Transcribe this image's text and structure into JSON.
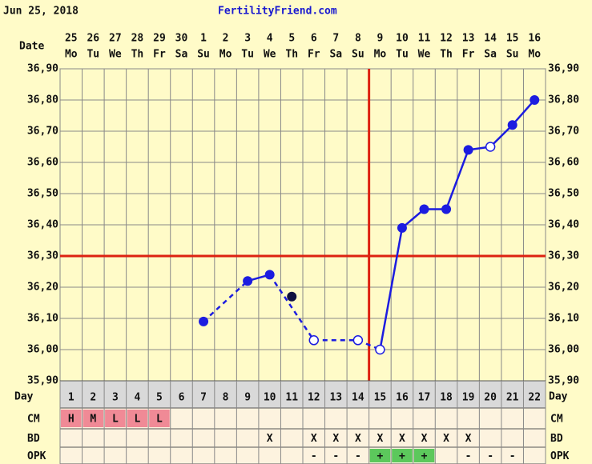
{
  "chart_data": {
    "type": "line",
    "title": "Jun 25, 2018",
    "site": "FertilityFriend.com",
    "date_label": "Date",
    "day_label": "Day",
    "dates": [
      "25",
      "26",
      "27",
      "28",
      "29",
      "30",
      "1",
      "2",
      "3",
      "4",
      "5",
      "6",
      "7",
      "8",
      "9",
      "10",
      "11",
      "12",
      "13",
      "14",
      "15",
      "16"
    ],
    "weekdays": [
      "Mo",
      "Tu",
      "We",
      "Th",
      "Fr",
      "Sa",
      "Su",
      "Mo",
      "Tu",
      "We",
      "Th",
      "Fr",
      "Sa",
      "Su",
      "Mo",
      "Tu",
      "We",
      "Th",
      "Fr",
      "Sa",
      "Su",
      "Mo"
    ],
    "days": [
      1,
      2,
      3,
      4,
      5,
      6,
      7,
      8,
      9,
      10,
      11,
      12,
      13,
      14,
      15,
      16,
      17,
      18,
      19,
      20,
      21,
      22
    ],
    "values": [
      null,
      null,
      null,
      null,
      null,
      null,
      36.09,
      null,
      36.22,
      36.24,
      36.17,
      36.03,
      null,
      36.03,
      36.0,
      36.39,
      36.45,
      36.45,
      36.64,
      36.65,
      36.72,
      36.8
    ],
    "open": [
      false,
      false,
      false,
      false,
      false,
      false,
      false,
      false,
      false,
      false,
      false,
      true,
      false,
      true,
      true,
      false,
      false,
      false,
      false,
      true,
      false,
      false
    ],
    "excluded": [
      false,
      false,
      false,
      false,
      false,
      false,
      false,
      false,
      false,
      false,
      true,
      false,
      false,
      false,
      false,
      false,
      false,
      false,
      false,
      false,
      false,
      false
    ],
    "dashed": [
      false,
      false,
      false,
      false,
      false,
      false,
      false,
      false,
      true,
      false,
      false,
      true,
      false,
      true,
      true,
      false,
      false,
      false,
      false,
      false,
      false,
      false
    ],
    "color": "#1c1ce0",
    "excluded_color": "#101040",
    "ylim": [
      35.9,
      36.9
    ],
    "yticks": [
      {
        "value": 35.9,
        "label": "35,90"
      },
      {
        "value": 36.0,
        "label": "36,00"
      },
      {
        "value": 36.1,
        "label": "36,10"
      },
      {
        "value": 36.2,
        "label": "36,20"
      },
      {
        "value": 36.3,
        "label": "36,30"
      },
      {
        "value": 36.4,
        "label": "36,40"
      },
      {
        "value": 36.5,
        "label": "36,50"
      },
      {
        "value": 36.6,
        "label": "36,60"
      },
      {
        "value": 36.7,
        "label": "36,70"
      },
      {
        "value": 36.8,
        "label": "36,80"
      },
      {
        "value": 36.9,
        "label": "36,90"
      }
    ],
    "cover_line": 36.3,
    "ovulation_day": 15,
    "marker_color": "#dd2211",
    "grid": true,
    "rows": [
      {
        "label": "CM",
        "cells": [
          "H",
          "M",
          "L",
          "L",
          "L",
          null,
          null,
          null,
          null,
          null,
          null,
          null,
          null,
          null,
          null,
          null,
          null,
          null,
          null,
          null,
          null,
          null
        ]
      },
      {
        "label": "BD",
        "cells": [
          null,
          null,
          null,
          null,
          null,
          null,
          null,
          null,
          null,
          "X",
          null,
          "X",
          "X",
          "X",
          "X",
          "X",
          "X",
          "X",
          "X",
          null,
          null,
          null
        ]
      },
      {
        "label": "OPK",
        "cells": [
          null,
          null,
          null,
          null,
          null,
          null,
          null,
          null,
          null,
          null,
          null,
          "-",
          "-",
          "-",
          "+",
          "+",
          "+",
          null,
          "-",
          "-",
          "-",
          null
        ]
      }
    ],
    "cell_fill": {
      "H": "#f08a96",
      "M": "#f08a96",
      "L": "#f08a96",
      "+": "#5cc85c"
    }
  }
}
